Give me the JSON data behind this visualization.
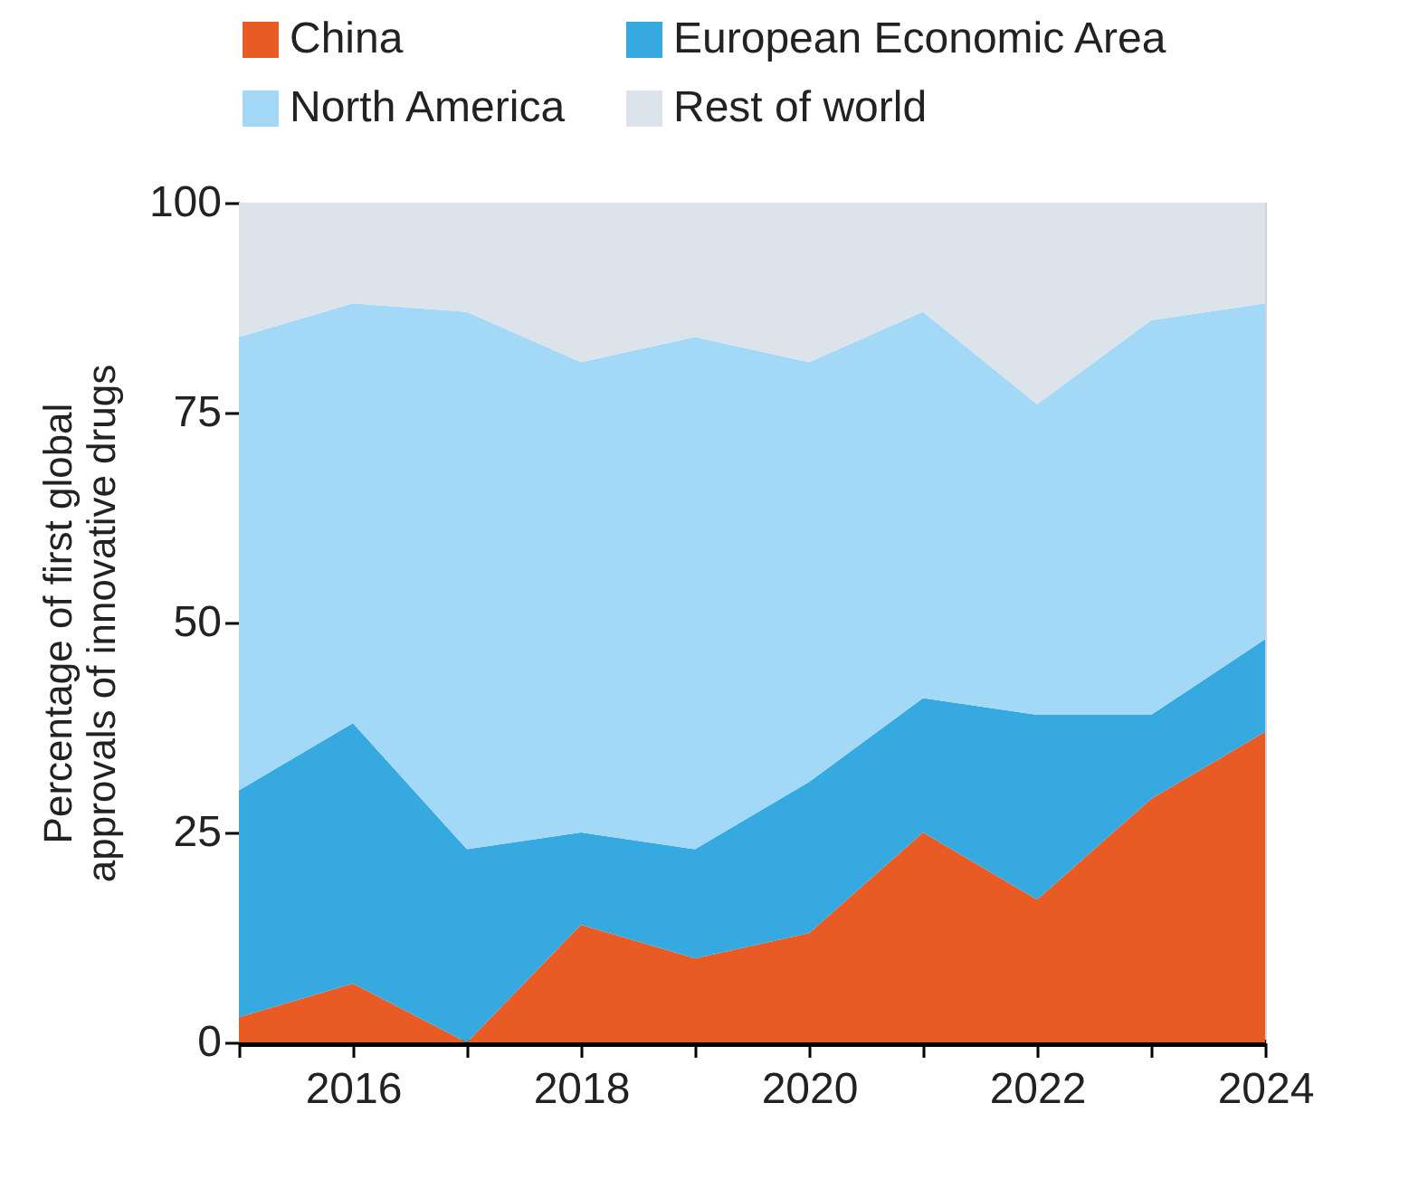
{
  "chart_data": {
    "type": "area",
    "stacked": true,
    "x": [
      2015,
      2016,
      2017,
      2018,
      2019,
      2020,
      2021,
      2022,
      2023,
      2024
    ],
    "series": [
      {
        "name": "China",
        "color": "#e95b25",
        "values": [
          3,
          7,
          0,
          14,
          10,
          13,
          25,
          17,
          29,
          37
        ]
      },
      {
        "name": "European Economic Area",
        "color": "#36a9e1",
        "values": [
          27,
          31,
          23,
          11,
          13,
          18,
          16,
          22,
          10,
          11
        ]
      },
      {
        "name": "North America",
        "color": "#a3d9f7",
        "values": [
          54,
          50,
          64,
          56,
          61,
          50,
          46,
          37,
          47,
          40
        ]
      },
      {
        "name": "Rest of world",
        "color": "#dde3ea",
        "values": [
          16,
          12,
          13,
          19,
          16,
          19,
          13,
          24,
          14,
          12
        ]
      }
    ],
    "ylabel": "Percentage of first global\napprovals of innovative drugs",
    "xlim": [
      2015,
      2024
    ],
    "xticks": [
      {
        "value": 2015,
        "label": null
      },
      2016,
      {
        "value": 2017,
        "label": null
      },
      2018,
      {
        "value": 2019,
        "label": null
      },
      2020,
      {
        "value": 2021,
        "label": null
      },
      2022,
      {
        "value": 2023,
        "label": null
      },
      2024
    ],
    "ylim": [
      0,
      100
    ],
    "yticks": [
      0,
      25,
      50,
      75,
      100
    ],
    "grid": false,
    "legend": "top"
  }
}
